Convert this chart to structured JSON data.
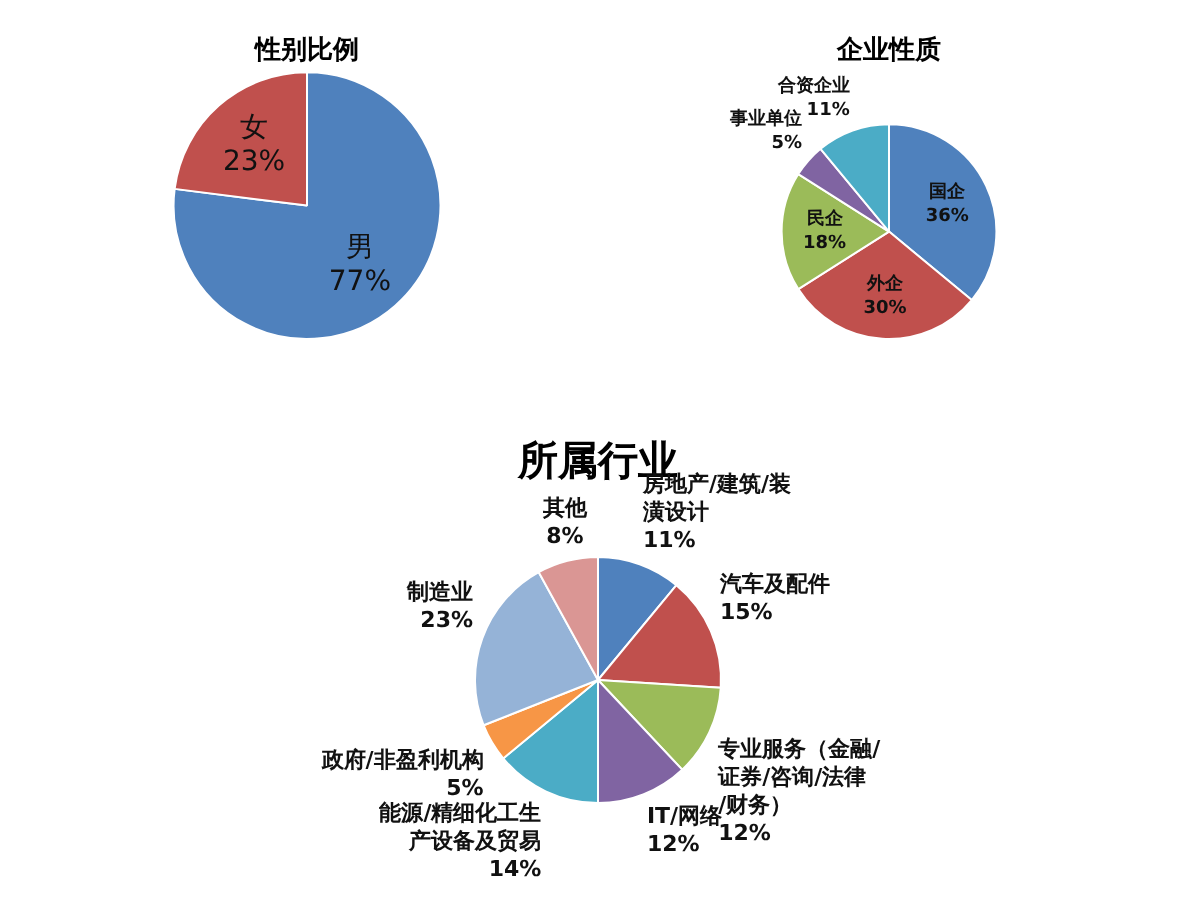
{
  "chart_data": [
    {
      "type": "pie",
      "title": "性别比例",
      "categories": [
        "男",
        "女"
      ],
      "values": [
        77,
        23
      ],
      "value_labels": [
        "77%",
        "23%"
      ],
      "colors": [
        "#4f81bd",
        "#c0504d"
      ],
      "legend": false
    },
    {
      "type": "pie",
      "title": "企业性质",
      "categories": [
        "国企",
        "外企",
        "民企",
        "事业单位",
        "合资企业"
      ],
      "values": [
        36,
        30,
        18,
        5,
        11
      ],
      "value_labels": [
        "36%",
        "30%",
        "18%",
        "5%",
        "11%"
      ],
      "colors": [
        "#4f81bd",
        "#c0504d",
        "#9bbb59",
        "#8064a2",
        "#4bacc6"
      ],
      "legend": false
    },
    {
      "type": "pie",
      "title": "所属行业",
      "categories": [
        "房地产/建筑/装潢设计",
        "汽车及配件",
        "专业服务（金融/证券/咨询/法律/财务）",
        "IT/网络",
        "能源/精细化工生产设备及贸易",
        "政府/非盈利机构",
        "制造业",
        "其他"
      ],
      "values": [
        11,
        15,
        12,
        12,
        14,
        5,
        23,
        8
      ],
      "value_labels": [
        "11%",
        "15%",
        "12%",
        "12%",
        "14%",
        "5%",
        "23%",
        "8%"
      ],
      "colors": [
        "#4f81bd",
        "#c0504d",
        "#9bbb59",
        "#8064a2",
        "#4bacc6",
        "#f79646",
        "#95b3d7",
        "#da9694"
      ],
      "legend": false
    }
  ]
}
